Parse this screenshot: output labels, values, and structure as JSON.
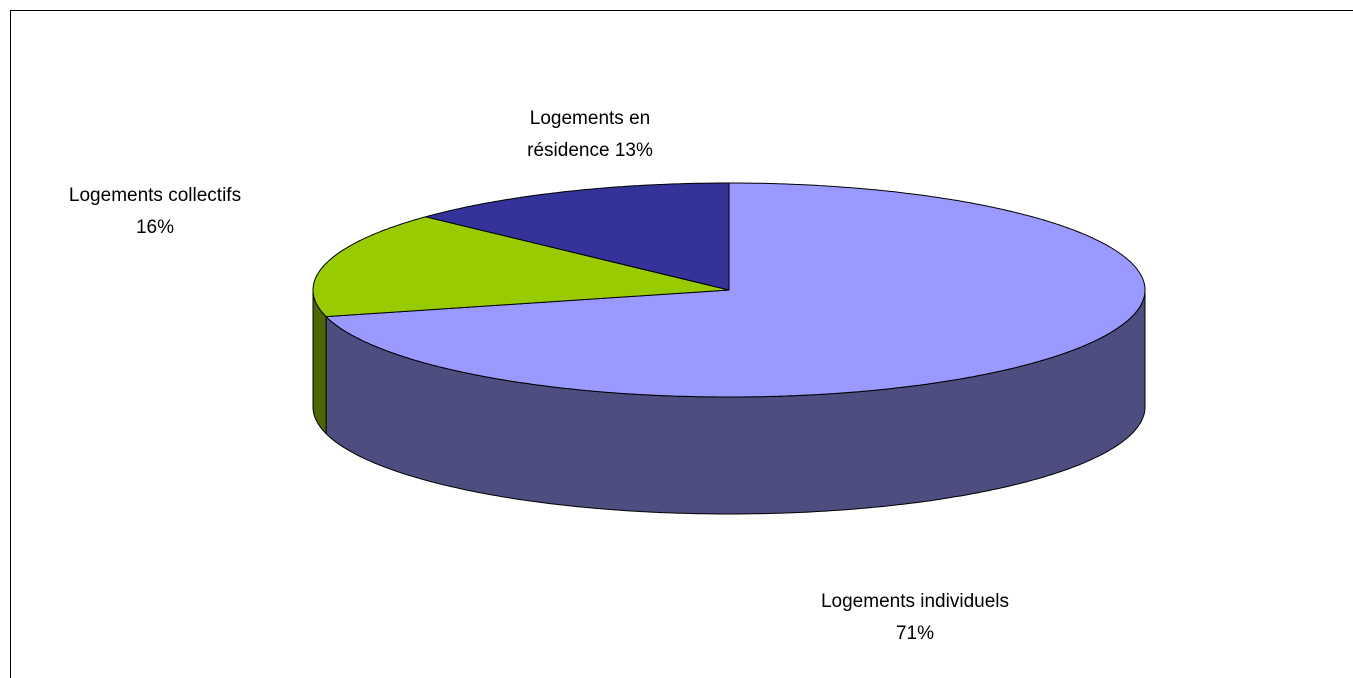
{
  "chart_data": {
    "type": "pie3d",
    "categories": [
      "Logements individuels",
      "Logements collectifs",
      "Logements en résidence"
    ],
    "values": [
      71,
      16,
      13
    ],
    "value_labels": [
      "71%",
      "16%",
      "13%"
    ],
    "colors": [
      "#9999ff",
      "#99cc00",
      "#333399"
    ]
  }
}
